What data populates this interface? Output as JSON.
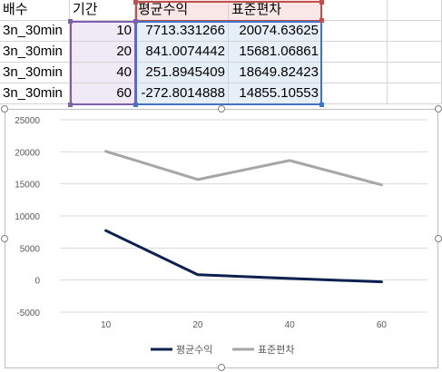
{
  "sheet": {
    "headers": [
      "배수",
      "기간",
      "평균수익",
      "표준편차"
    ],
    "rows": [
      [
        "3n_30min",
        "10",
        "7713.331266",
        "20074.63625"
      ],
      [
        "3n_30min",
        "20",
        "841.0074442",
        "15681.06861"
      ],
      [
        "3n_30min",
        "40",
        "251.8945409",
        "18649.82423"
      ],
      [
        "3n_30min",
        "60",
        "-272.8014888",
        "14855.10553"
      ]
    ]
  },
  "chart_data": {
    "type": "line",
    "categories": [
      "10",
      "20",
      "40",
      "60"
    ],
    "series": [
      {
        "name": "평균수익",
        "values": [
          7713.331266,
          841.0074442,
          251.8945409,
          -272.8014888
        ],
        "color": "#0d2150"
      },
      {
        "name": "표준편차",
        "values": [
          20074.63625,
          15681.06861,
          18649.82423,
          14855.10553
        ],
        "color": "#a6a6a6"
      }
    ],
    "yticks": [
      "25000",
      "20000",
      "15000",
      "10000",
      "5000",
      "0",
      "-5000"
    ],
    "ylim": [
      -5000,
      25000
    ],
    "grid": true,
    "legend": "bottom"
  }
}
